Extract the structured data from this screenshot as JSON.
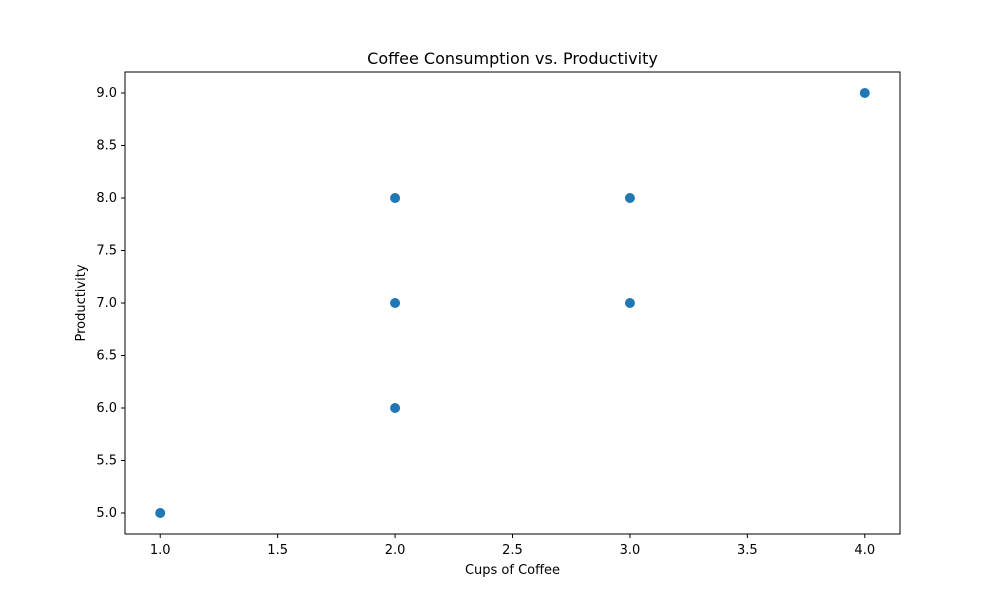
{
  "chart_data": {
    "type": "scatter",
    "title": "Coffee Consumption vs. Productivity",
    "xlabel": "Cups of Coffee",
    "ylabel": "Productivity",
    "xlim": [
      0.85,
      4.15
    ],
    "ylim": [
      4.8,
      9.2
    ],
    "x_ticks": [
      1.0,
      1.5,
      2.0,
      2.5,
      3.0,
      3.5,
      4.0
    ],
    "x_tick_labels": [
      "1.0",
      "1.5",
      "2.0",
      "2.5",
      "3.0",
      "3.5",
      "4.0"
    ],
    "y_ticks": [
      5.0,
      5.5,
      6.0,
      6.5,
      7.0,
      7.5,
      8.0,
      8.5,
      9.0
    ],
    "y_tick_labels": [
      "5.0",
      "5.5",
      "6.0",
      "6.5",
      "7.0",
      "7.5",
      "8.0",
      "8.5",
      "9.0"
    ],
    "grid": false,
    "series": [
      {
        "color": "#1f77b4",
        "points": [
          {
            "x": 1,
            "y": 5
          },
          {
            "x": 2,
            "y": 8
          },
          {
            "x": 2,
            "y": 7
          },
          {
            "x": 2,
            "y": 6
          },
          {
            "x": 3,
            "y": 8
          },
          {
            "x": 3,
            "y": 7
          },
          {
            "x": 4,
            "y": 9
          }
        ]
      }
    ]
  }
}
